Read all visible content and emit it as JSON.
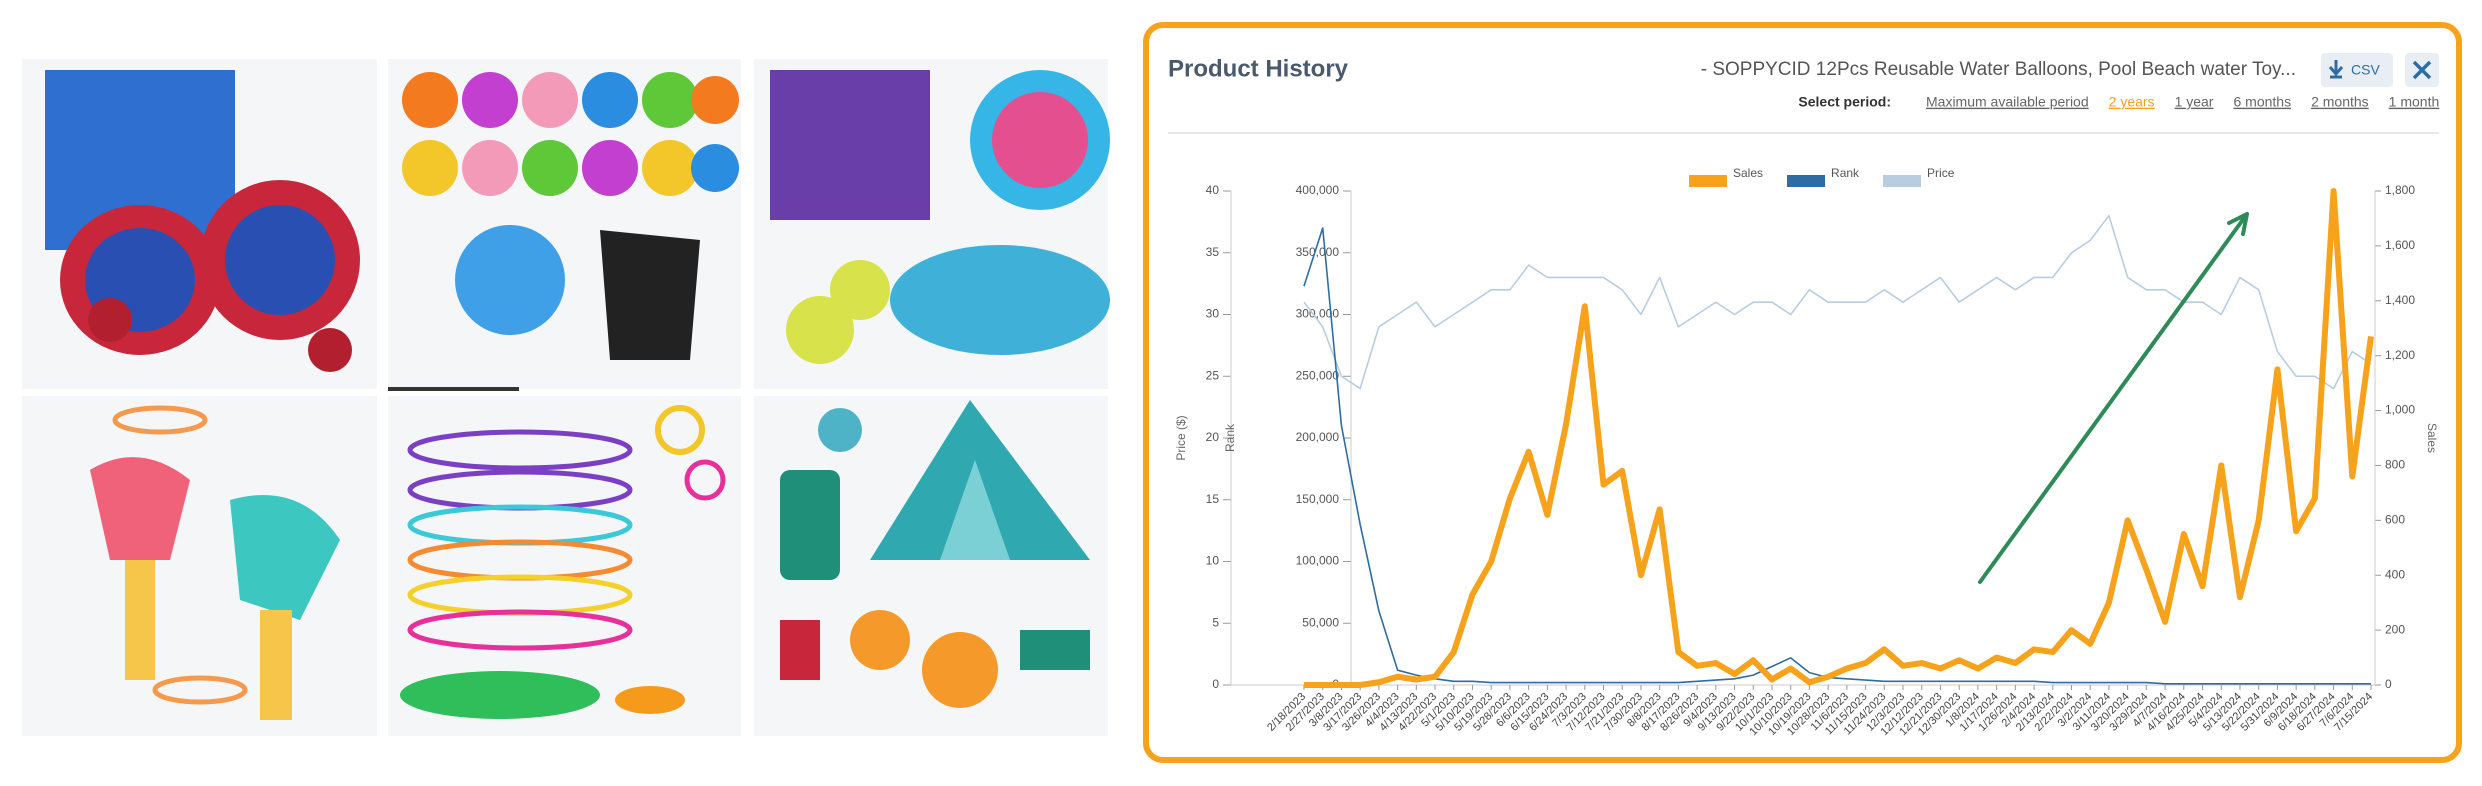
{
  "panel": {
    "title": "Product History",
    "product": "- SOPPYCID 12Pcs Reusable Water Balloons, Pool Beach water Toy...",
    "csv": "CSV",
    "period_label": "Select period:",
    "periods": [
      "Maximum available period",
      "2 years",
      "1 year",
      "6 months",
      "2 months",
      "1 month"
    ],
    "selected_period": 1
  },
  "chart_data": {
    "type": "line",
    "categories": [
      "2/18/2023",
      "2/27/2023",
      "3/8/2023",
      "3/17/2023",
      "3/26/2023",
      "4/4/2023",
      "4/13/2023",
      "4/22/2023",
      "5/1/2023",
      "5/10/2023",
      "5/19/2023",
      "5/28/2023",
      "6/6/2023",
      "6/15/2023",
      "6/24/2023",
      "7/3/2023",
      "7/12/2023",
      "7/21/2023",
      "7/30/2023",
      "8/8/2023",
      "8/17/2023",
      "8/26/2023",
      "9/4/2023",
      "9/13/2023",
      "9/22/2023",
      "10/1/2023",
      "10/10/2023",
      "10/19/2023",
      "10/28/2023",
      "11/6/2023",
      "11/15/2023",
      "11/24/2023",
      "12/3/2023",
      "12/12/2023",
      "12/21/2023",
      "12/30/2023",
      "1/8/2024",
      "1/17/2024",
      "1/26/2024",
      "2/4/2024",
      "2/13/2024",
      "2/22/2024",
      "3/2/2024",
      "3/11/2024",
      "3/20/2024",
      "3/29/2024",
      "4/7/2024",
      "4/16/2024",
      "4/25/2024",
      "5/4/2024",
      "5/13/2024",
      "5/22/2024",
      "5/31/2024",
      "6/9/2024",
      "6/18/2024",
      "6/27/2024",
      "7/6/2024",
      "7/15/2024"
    ],
    "series": [
      {
        "name": "Sales",
        "color": "#f7a21b",
        "axis": "y2",
        "values": [
          0,
          0,
          0,
          0,
          10,
          30,
          20,
          30,
          120,
          330,
          450,
          680,
          850,
          620,
          950,
          1380,
          730,
          780,
          400,
          640,
          120,
          70,
          80,
          40,
          90,
          20,
          60,
          10,
          30,
          60,
          80,
          130,
          70,
          80,
          60,
          90,
          60,
          100,
          80,
          130,
          120,
          200,
          150,
          300,
          600,
          420,
          230,
          550,
          360,
          800,
          320,
          600,
          1150,
          560,
          680,
          1800,
          760,
          1270
        ]
      },
      {
        "name": "Rank",
        "color": "#2e6da4",
        "axis": "y3",
        "values": [
          323000,
          370000,
          210000,
          130000,
          60000,
          12000,
          8000,
          5000,
          3000,
          3000,
          2000,
          2000,
          2000,
          2000,
          2000,
          2000,
          2000,
          2000,
          2000,
          2000,
          2000,
          3000,
          4000,
          5000,
          8000,
          15000,
          22000,
          10000,
          6000,
          5000,
          4000,
          3000,
          3000,
          3000,
          3000,
          3000,
          3000,
          3000,
          3000,
          3000,
          2000,
          2000,
          2000,
          2000,
          2000,
          2000,
          1000,
          1000,
          1000,
          1000,
          1000,
          1000,
          1000,
          1000,
          1000,
          1000,
          1000,
          1000
        ]
      },
      {
        "name": "Price",
        "color": "#b8cde0",
        "values": [
          31,
          29,
          25,
          24,
          29,
          30,
          31,
          29,
          30,
          31,
          32,
          32,
          34,
          33,
          33,
          33,
          33,
          32,
          30,
          33,
          29,
          30,
          31,
          30,
          31,
          31,
          30,
          32,
          31,
          31,
          31,
          32,
          31,
          32,
          33,
          31,
          32,
          33,
          32,
          33,
          33,
          35,
          36,
          38,
          33,
          32,
          32,
          31,
          31,
          30,
          33,
          32,
          27,
          25,
          25,
          24,
          27,
          26
        ]
      }
    ],
    "y_label": "Price ($)",
    "y3_label": "Rank",
    "y2_label": "Sales",
    "ylim": [
      0,
      40
    ],
    "yticks": [
      0,
      5,
      10,
      15,
      20,
      25,
      30,
      35,
      40
    ],
    "y3lim": [
      0,
      400000
    ],
    "y3ticks": [
      0,
      {
        "value": 50000,
        "label": "50,000"
      },
      {
        "value": 100000,
        "label": "100,000"
      },
      {
        "value": 150000,
        "label": "150,000"
      },
      {
        "value": 200000,
        "label": "200,000"
      },
      {
        "value": 250000,
        "label": "250,000"
      },
      {
        "value": 300000,
        "label": "300,000"
      },
      {
        "value": 350000,
        "label": "350,000"
      },
      {
        "value": 400000,
        "label": "400,000"
      }
    ],
    "y2lim": [
      0,
      1800
    ],
    "y2ticks": [
      0,
      200,
      400,
      600,
      800,
      {
        "value": 1000,
        "label": "1,000"
      },
      {
        "value": 1200,
        "label": "1,200"
      },
      {
        "value": 1400,
        "label": "1,400"
      },
      {
        "value": 1600,
        "label": "1,600"
      },
      {
        "value": 1800,
        "label": "1,800"
      }
    ],
    "legend": "top"
  }
}
